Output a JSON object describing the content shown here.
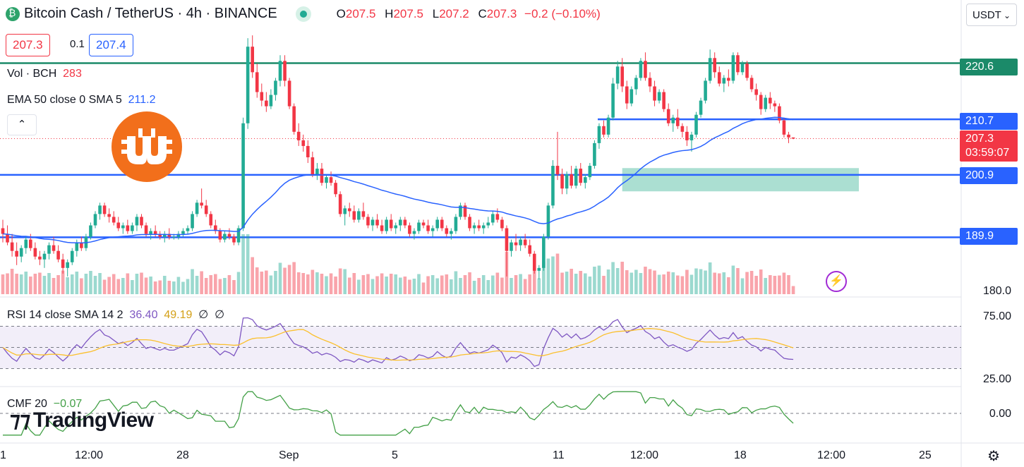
{
  "header": {
    "symbol": "Bitcoin Cash",
    "quote": "TetherUS",
    "interval": "4h",
    "exchange": "BINANCE",
    "title": "Bitcoin Cash / TetherUS · 4h · BINANCE",
    "ohlc": {
      "o_label": "O",
      "o": "207.5",
      "h_label": "H",
      "h": "207.5",
      "l_label": "L",
      "l": "207.2",
      "c_label": "C",
      "c": "207.3",
      "change": "−0.2 (−0.10%)"
    }
  },
  "trade": {
    "sell": "207.3",
    "spread": "0.1",
    "buy": "207.4"
  },
  "indicators": {
    "vol_label": "Vol · BCH",
    "vol_value": "283",
    "ema_label": "EMA 50 close 0 SMA 5",
    "ema_value": "211.2",
    "rsi_label": "RSI 14 close SMA 14 2",
    "rsi_value": "36.40",
    "rsi_sma_value": "49.19",
    "rsi_extra1": "∅",
    "rsi_extra2": "∅",
    "cmf_label": "CMF 20",
    "cmf_value": "−0.07"
  },
  "currency_selector": {
    "label": "USDT",
    "icon": "chevron-down-icon"
  },
  "price_tags": {
    "level1": "220.6",
    "level2": "210.7",
    "current": "207.3",
    "countdown": "03:59:07",
    "level3": "200.9",
    "level4": "189.9"
  },
  "axis": {
    "price_bottom": "180.0",
    "rsi_top": "75.00",
    "rsi_bottom": "25.00",
    "cmf_zero": "0.00",
    "x_labels": [
      "1",
      "12:00",
      "28",
      "Sep",
      "5",
      "11",
      "12:00",
      "18",
      "12:00",
      "25"
    ]
  },
  "branding": {
    "logo_text": "TradingView"
  },
  "icons": {
    "collapse": "chevron-up-icon",
    "bolt": "lightning-icon",
    "settings": "gear-icon",
    "coin": "bitcoin-cash-icon"
  },
  "colors": {
    "up": "#22ab94",
    "down": "#f23645",
    "ema": "#2962ff",
    "rsi": "#7e57c2",
    "rsi_sma": "#fbc02d",
    "cmf": "#43a047",
    "resistance_line": "#1b8a69",
    "support_line": "#2962ff",
    "zone": "#8fd4c3"
  },
  "chart_data": {
    "type": "candlestick",
    "price_range": [
      180,
      228
    ],
    "levels": [
      220.6,
      210.7,
      200.9,
      189.9
    ],
    "current_price": 207.3,
    "ema_last": 211.2,
    "rsi_last": 36.4,
    "rsi_sma_last": 49.19,
    "rsi_bands": [
      30,
      50,
      70
    ],
    "cmf_last": -0.07,
    "shapes": {
      "levels": [
        {
          "price": 210.7,
          "from_x": 210
        }
      ],
      "zones": [
        {
          "top": 202.1,
          "bottom": 198.0,
          "from_x": 219,
          "to_x": 300
        }
      ]
    },
    "ohlc": [
      [
        191.5,
        193.0,
        189.0,
        190.5
      ],
      [
        190.5,
        192.0,
        188.5,
        189.0
      ],
      [
        189.0,
        190.5,
        186.5,
        187.5
      ],
      [
        187.5,
        189.0,
        185.0,
        186.5
      ],
      [
        186.5,
        188.5,
        185.5,
        188.0
      ],
      [
        188.0,
        190.0,
        187.0,
        189.5
      ],
      [
        189.5,
        190.5,
        187.5,
        188.0
      ],
      [
        188.0,
        189.0,
        186.0,
        186.5
      ],
      [
        186.5,
        187.5,
        185.0,
        186.0
      ],
      [
        186.0,
        187.5,
        184.5,
        187.0
      ],
      [
        187.0,
        189.0,
        186.0,
        188.5
      ],
      [
        188.5,
        190.0,
        187.0,
        187.5
      ],
      [
        187.5,
        188.5,
        185.5,
        186.0
      ],
      [
        186.0,
        187.0,
        183.5,
        184.5
      ],
      [
        184.5,
        186.0,
        183.0,
        185.5
      ],
      [
        185.5,
        188.0,
        185.0,
        187.5
      ],
      [
        187.5,
        189.5,
        186.5,
        189.0
      ],
      [
        189.0,
        190.0,
        187.5,
        188.0
      ],
      [
        188.0,
        190.5,
        187.5,
        190.0
      ],
      [
        190.0,
        192.5,
        189.5,
        192.0
      ],
      [
        192.0,
        194.5,
        191.5,
        194.0
      ],
      [
        194.0,
        196.0,
        193.0,
        195.5
      ],
      [
        195.5,
        196.0,
        193.5,
        194.0
      ],
      [
        194.0,
        195.0,
        192.5,
        193.5
      ],
      [
        193.5,
        194.5,
        192.0,
        192.5
      ],
      [
        192.5,
        193.5,
        191.0,
        191.5
      ],
      [
        191.5,
        192.5,
        190.5,
        192.0
      ],
      [
        192.0,
        193.0,
        190.5,
        191.0
      ],
      [
        191.0,
        192.5,
        190.5,
        192.0
      ],
      [
        192.0,
        194.0,
        191.0,
        193.5
      ],
      [
        193.5,
        194.0,
        191.5,
        192.0
      ],
      [
        192.0,
        192.5,
        190.0,
        190.5
      ],
      [
        190.5,
        191.5,
        189.5,
        191.0
      ],
      [
        191.0,
        192.0,
        190.0,
        190.5
      ],
      [
        190.5,
        191.0,
        189.5,
        190.0
      ],
      [
        190.0,
        191.0,
        189.0,
        190.5
      ],
      [
        190.5,
        191.5,
        189.5,
        190.0
      ],
      [
        190.0,
        190.5,
        189.5,
        190.0
      ],
      [
        190.0,
        191.0,
        189.5,
        190.5
      ],
      [
        190.5,
        191.5,
        190.0,
        191.0
      ],
      [
        191.0,
        192.0,
        190.5,
        191.5
      ],
      [
        191.5,
        194.5,
        191.0,
        194.0
      ],
      [
        194.0,
        196.5,
        193.5,
        196.0
      ],
      [
        196.0,
        198.5,
        195.0,
        195.5
      ],
      [
        195.5,
        196.5,
        193.5,
        194.0
      ],
      [
        194.0,
        194.5,
        191.5,
        192.0
      ],
      [
        192.0,
        193.0,
        190.5,
        191.0
      ],
      [
        191.0,
        191.5,
        189.0,
        189.5
      ],
      [
        189.5,
        191.0,
        189.0,
        190.5
      ],
      [
        190.5,
        191.5,
        189.5,
        190.0
      ],
      [
        190.0,
        190.5,
        188.5,
        189.0
      ],
      [
        189.0,
        192.0,
        188.5,
        191.5
      ],
      [
        191.5,
        211.0,
        191.0,
        210.0
      ],
      [
        210.0,
        225.0,
        209.0,
        223.5
      ],
      [
        223.5,
        225.5,
        218.0,
        219.0
      ],
      [
        219.0,
        220.5,
        214.5,
        215.5
      ],
      [
        215.5,
        217.0,
        213.0,
        214.0
      ],
      [
        214.0,
        215.5,
        212.0,
        213.0
      ],
      [
        213.0,
        216.0,
        212.5,
        215.0
      ],
      [
        215.0,
        218.0,
        214.0,
        217.5
      ],
      [
        217.5,
        222.0,
        216.5,
        221.0
      ],
      [
        221.0,
        222.0,
        216.5,
        217.5
      ],
      [
        217.5,
        218.0,
        212.5,
        213.0
      ],
      [
        213.0,
        213.5,
        208.0,
        208.5
      ],
      [
        208.5,
        210.0,
        206.0,
        207.0
      ],
      [
        207.0,
        208.0,
        205.0,
        206.0
      ],
      [
        206.0,
        207.0,
        203.0,
        204.0
      ],
      [
        204.0,
        205.0,
        200.5,
        201.0
      ],
      [
        201.0,
        203.0,
        200.0,
        202.0
      ],
      [
        202.0,
        203.0,
        199.0,
        199.5
      ],
      [
        199.5,
        201.0,
        198.5,
        200.5
      ],
      [
        200.5,
        201.5,
        199.0,
        199.5
      ],
      [
        199.5,
        200.0,
        197.0,
        197.5
      ],
      [
        197.5,
        198.0,
        193.5,
        194.0
      ],
      [
        194.0,
        195.5,
        192.0,
        195.0
      ],
      [
        195.0,
        196.0,
        193.5,
        194.5
      ],
      [
        194.5,
        195.5,
        192.5,
        193.0
      ],
      [
        193.0,
        195.0,
        192.5,
        194.5
      ],
      [
        194.5,
        196.0,
        193.0,
        193.5
      ],
      [
        193.5,
        194.0,
        191.5,
        192.0
      ],
      [
        192.0,
        193.5,
        191.0,
        193.0
      ],
      [
        193.0,
        194.0,
        191.5,
        192.0
      ],
      [
        192.0,
        193.0,
        190.5,
        191.0
      ],
      [
        191.0,
        193.5,
        190.5,
        193.0
      ],
      [
        193.0,
        194.0,
        191.0,
        191.5
      ],
      [
        191.5,
        192.5,
        190.5,
        192.0
      ],
      [
        192.0,
        193.5,
        191.0,
        193.0
      ],
      [
        193.0,
        193.5,
        191.5,
        192.0
      ],
      [
        192.0,
        192.5,
        190.0,
        190.5
      ],
      [
        190.5,
        191.5,
        189.5,
        191.0
      ],
      [
        191.0,
        193.0,
        190.5,
        192.5
      ],
      [
        192.5,
        193.0,
        191.5,
        192.0
      ],
      [
        192.0,
        193.0,
        190.5,
        191.0
      ],
      [
        191.0,
        192.0,
        190.0,
        191.5
      ],
      [
        191.5,
        193.5,
        191.0,
        193.0
      ],
      [
        193.0,
        193.5,
        191.0,
        191.5
      ],
      [
        191.5,
        192.0,
        190.0,
        190.5
      ],
      [
        190.5,
        191.5,
        189.5,
        191.0
      ],
      [
        191.0,
        194.0,
        190.5,
        193.5
      ],
      [
        193.5,
        196.0,
        193.0,
        195.5
      ],
      [
        195.5,
        196.0,
        193.0,
        193.5
      ],
      [
        193.5,
        194.0,
        191.0,
        191.5
      ],
      [
        191.5,
        192.5,
        190.5,
        192.0
      ],
      [
        192.0,
        193.0,
        191.0,
        191.5
      ],
      [
        191.5,
        192.5,
        190.5,
        192.0
      ],
      [
        192.0,
        193.5,
        191.5,
        192.5
      ],
      [
        192.5,
        194.5,
        192.0,
        194.0
      ],
      [
        194.0,
        195.0,
        192.5,
        193.0
      ],
      [
        193.0,
        193.5,
        191.0,
        191.5
      ],
      [
        191.5,
        192.0,
        183.0,
        187.5
      ],
      [
        187.5,
        189.5,
        186.5,
        189.0
      ],
      [
        189.0,
        190.5,
        187.5,
        188.5
      ],
      [
        188.5,
        190.0,
        187.5,
        189.5
      ],
      [
        189.5,
        190.5,
        188.0,
        188.5
      ],
      [
        188.5,
        189.5,
        186.5,
        187.0
      ],
      [
        187.0,
        187.5,
        183.5,
        184.0
      ],
      [
        184.0,
        185.0,
        182.5,
        184.5
      ],
      [
        184.5,
        190.5,
        184.0,
        190.0
      ],
      [
        190.0,
        196.0,
        189.5,
        195.5
      ],
      [
        195.5,
        203.5,
        195.0,
        202.5
      ],
      [
        202.5,
        208.5,
        200.0,
        201.0
      ],
      [
        201.0,
        202.0,
        197.5,
        198.5
      ],
      [
        198.5,
        201.5,
        197.5,
        201.0
      ],
      [
        201.0,
        202.5,
        198.5,
        199.0
      ],
      [
        199.0,
        202.5,
        198.5,
        202.0
      ],
      [
        202.0,
        203.0,
        199.0,
        199.5
      ],
      [
        199.5,
        201.0,
        198.5,
        200.5
      ],
      [
        200.5,
        203.0,
        200.0,
        202.5
      ],
      [
        202.5,
        207.0,
        202.0,
        206.5
      ],
      [
        206.5,
        210.0,
        205.5,
        209.5
      ],
      [
        209.5,
        210.5,
        207.5,
        208.0
      ],
      [
        208.0,
        211.5,
        207.5,
        211.0
      ],
      [
        211.0,
        218.0,
        210.5,
        217.0
      ],
      [
        217.0,
        221.0,
        216.0,
        220.0
      ],
      [
        220.0,
        221.5,
        215.5,
        216.5
      ],
      [
        216.5,
        217.5,
        212.5,
        213.5
      ],
      [
        213.5,
        216.5,
        213.0,
        216.0
      ],
      [
        216.0,
        218.5,
        215.0,
        218.0
      ],
      [
        218.0,
        221.5,
        217.5,
        221.0
      ],
      [
        221.0,
        222.5,
        217.5,
        218.0
      ],
      [
        218.0,
        219.0,
        215.5,
        216.5
      ],
      [
        216.5,
        217.5,
        213.0,
        214.0
      ],
      [
        214.0,
        216.0,
        213.5,
        215.5
      ],
      [
        215.5,
        216.0,
        212.0,
        212.5
      ],
      [
        212.5,
        213.5,
        209.5,
        210.0
      ],
      [
        210.0,
        211.5,
        208.5,
        211.0
      ],
      [
        211.0,
        212.5,
        209.0,
        209.5
      ],
      [
        209.5,
        210.0,
        207.5,
        208.5
      ],
      [
        208.5,
        209.5,
        206.0,
        207.0
      ],
      [
        207.0,
        208.5,
        205.0,
        208.0
      ],
      [
        208.0,
        212.0,
        207.5,
        211.5
      ],
      [
        211.5,
        214.5,
        211.0,
        214.0
      ],
      [
        214.0,
        218.0,
        213.5,
        217.5
      ],
      [
        217.5,
        223.0,
        217.0,
        221.5
      ],
      [
        221.5,
        222.5,
        218.0,
        219.0
      ],
      [
        219.0,
        220.0,
        216.5,
        217.0
      ],
      [
        217.0,
        218.5,
        215.5,
        218.0
      ],
      [
        218.0,
        219.5,
        216.5,
        217.5
      ],
      [
        217.5,
        222.5,
        217.0,
        222.0
      ],
      [
        222.0,
        222.5,
        218.5,
        219.0
      ],
      [
        219.0,
        221.0,
        218.5,
        220.5
      ],
      [
        220.5,
        221.0,
        217.5,
        218.0
      ],
      [
        218.0,
        218.5,
        215.5,
        216.0
      ],
      [
        216.0,
        217.0,
        214.0,
        215.0
      ],
      [
        215.0,
        215.5,
        211.5,
        212.5
      ],
      [
        212.5,
        215.0,
        212.0,
        214.5
      ],
      [
        214.5,
        215.5,
        212.5,
        213.5
      ],
      [
        213.5,
        214.0,
        212.0,
        213.0
      ],
      [
        213.0,
        213.5,
        210.0,
        210.5
      ],
      [
        210.5,
        211.0,
        207.5,
        208.0
      ],
      [
        208.0,
        208.5,
        206.5,
        207.5
      ],
      [
        207.5,
        207.5,
        207.2,
        207.3
      ]
    ]
  }
}
